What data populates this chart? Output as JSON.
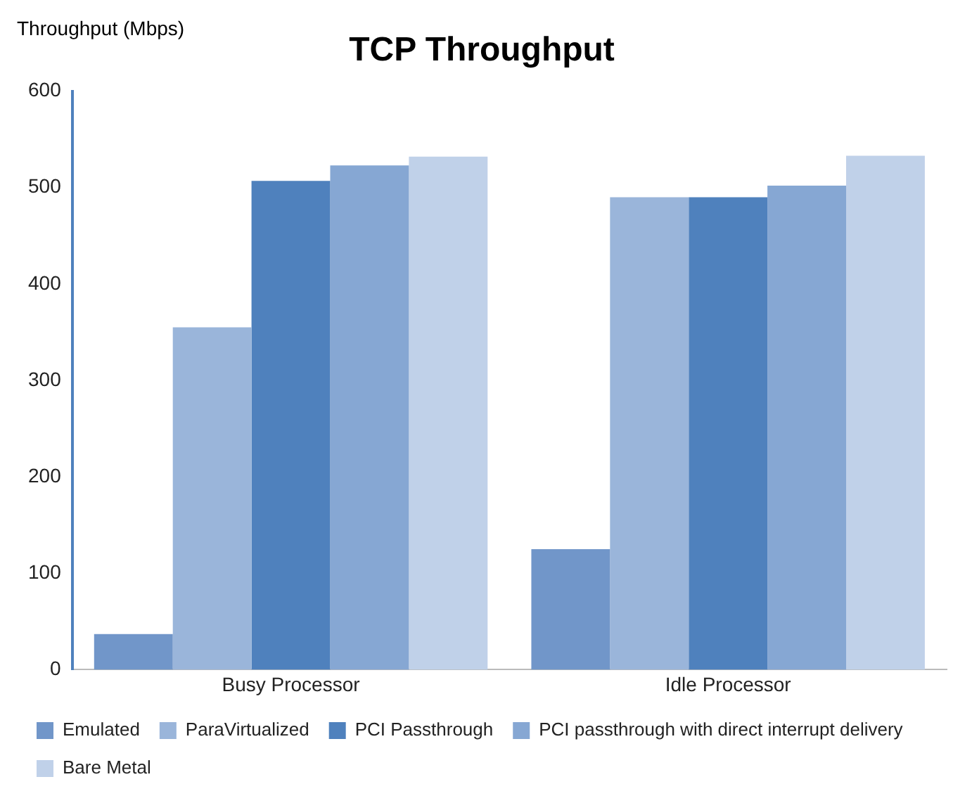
{
  "chart_data": {
    "type": "bar",
    "title": "TCP Throughput",
    "ylabel": "Throughput (Mbps)",
    "categories": [
      "Busy Processor",
      "Idle Processor"
    ],
    "series": [
      {
        "name": "Emulated",
        "color": "#7196c9",
        "values": [
          37,
          125
        ]
      },
      {
        "name": "ParaVirtualized",
        "color": "#9ab5da",
        "values": [
          355,
          490
        ]
      },
      {
        "name": "PCI Passthrough",
        "color": "#4f81bd",
        "values": [
          507,
          490
        ]
      },
      {
        "name": "PCI passthrough with direct interrupt delivery",
        "color": "#86a7d3",
        "values": [
          523,
          502
        ]
      },
      {
        "name": "Bare Metal",
        "color": "#c0d1e9",
        "values": [
          532,
          533
        ]
      }
    ],
    "ylim": [
      0,
      600
    ],
    "yticks": [
      0,
      100,
      200,
      300,
      400,
      500,
      600
    ],
    "grid": false,
    "legend": "bottom"
  }
}
